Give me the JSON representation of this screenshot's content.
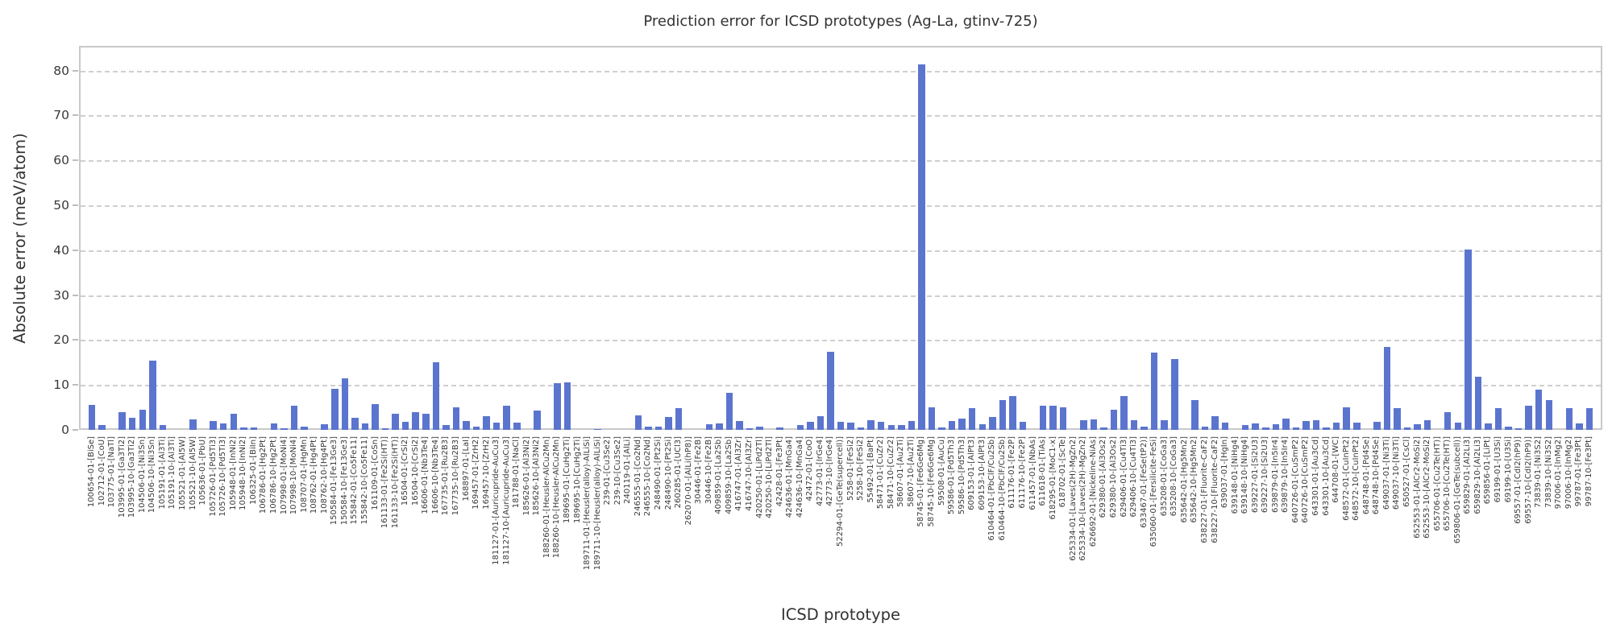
{
  "chart_data": {
    "type": "bar",
    "title": "Prediction error for ICSD prototypes (Ag-La, gtinv-725)",
    "xlabel": "ICSD prototype",
    "ylabel": "Absolute error (meV/atom)",
    "ylim": [
      0,
      85.5
    ],
    "yticks": [
      0,
      10,
      20,
      30,
      40,
      50,
      60,
      70,
      80
    ],
    "grid": "horizontal-dashed",
    "legend": "none",
    "bar_color": "#5b75ce",
    "grid_color": "#cfcfcf",
    "frame_color": "#c9c9c9",
    "text_color": "#3a3a3a",
    "xtick_rotation": 90,
    "categories": [
      "100654-01-[BiSe]",
      "102712-01-[CoU]",
      "103775-01-[NaTl]",
      "103995-01-[Ga3Ti2]",
      "103995-10-[Ga3Ti2]",
      "104506-01-[Ni3Sn]",
      "104506-10-[Ni3Sn]",
      "105191-01-[Al3Ti]",
      "105191-10-[Al3Ti]",
      "105521-01-[Al5W]",
      "105521-10-[Al5W]",
      "105636-01-[PbU]",
      "105726-01-[Pd5Ti3]",
      "105726-10-[Pd5Ti3]",
      "105948-01-[InNi2]",
      "105948-10-[InNi2]",
      "106325-01-[BiIn]",
      "106786-01-[Hg2Pt]",
      "106786-10-[Hg2Pt]",
      "107998-01-[MoNi4]",
      "107998-10-[MoNi4]",
      "108707-01-[HgMn]",
      "108762-01-[Hg4Pt]",
      "108762-10-[Hg4Pt]",
      "150584-01-[Fe13Ge3]",
      "150584-10-[Fe13Ge3]",
      "155842-01-[Co5Fe11]",
      "155842-10-[Co5Fe11]",
      "161109-01-[CoSn]",
      "161133-01-[Fe2Si(HT)]",
      "161133-10-[Fe2Si(HT)]",
      "16504-01-[CrSi2]",
      "16504-10-[CrSi2]",
      "16606-01-[Nb3Te4]",
      "16606-10-[Nb3Te4]",
      "167735-01-[Ru2B3]",
      "167735-10-[Ru2B3]",
      "168897-01-[LaI]",
      "169457-01-[ZrH2]",
      "169457-10-[ZrH2]",
      "181127-01-[Auricupride-AuCu3]",
      "181127-10-[Auricupride-AuCu3]",
      "181788-01-[NaCl]",
      "185626-01-[Al3Ni2]",
      "185626-10-[Al3Ni2]",
      "188260-01-[Heusler-AlCu2Mn]",
      "188260-10-[Heusler-AlCu2Mn]",
      "189695-01-[CuHg2Ti]",
      "189695-10-[CuHg2Ti]",
      "189711-01-[Heusler(alloy)-AlLiSi]",
      "189711-10-[Heusler(alloy)-AlLiSi]",
      "239-01-[Cu3Se2]",
      "239-10-[Cu3Se2]",
      "240119-01-[AlLi]",
      "246555-01-[Co2Nd]",
      "246555-10-[Co2Nd]",
      "248490-01-[Pt2Si]",
      "248490-10-[Pt2Si]",
      "260285-01-[UCl3]",
      "262070-01-[AlLi(hP8)]",
      "30446-01-[Fe2B]",
      "30446-10-[Fe2B]",
      "409859-01-[La2Sb]",
      "409859-10-[La2Sb]",
      "416747-01-[Al3Zr]",
      "416747-10-[Al3Zr]",
      "420250-01-[LiPd2Tl]",
      "420250-10-[LiPd2Tl]",
      "42428-01-[Fe3Pt]",
      "424636-01-[MnGa4]",
      "424636-10-[MnGa4]",
      "42472-01-[CoO]",
      "42773-01-[IrGe4]",
      "42773-10-[IrGe4]",
      "52294-01-[GeTe(supercell)]",
      "5258-01-[FeSi2]",
      "5258-10-[FeSi2]",
      "55492-01-[BaPt]",
      "58471-01-[CuZr2]",
      "58471-10-[CuZr2]",
      "58607-01-[Au2Ti]",
      "58607-10-[Au2Ti]",
      "58745-01-[Fe6Ge6Mg]",
      "58745-10-[Fe6Ge6Mg]",
      "59508-01-[AuCu]",
      "59586-01-[Pd5Th3]",
      "59586-10-[Pd5Th3]",
      "609153-01-[AlPt3]",
      "609153-10-[AlPt3]",
      "610464-01-[PbClF/Cu2Sb]",
      "610464-10-[PbClF/Cu2Sb]",
      "611176-01-[Fe2P]",
      "611176-10-[Fe2P]",
      "611457-01-[NbAs]",
      "611618-01-[TiAs]",
      "618295-01-[MoC1-x]",
      "618702-01-[ScTe]",
      "625334-01-[Laves(2H)-MgZn2]",
      "625334-10-[Laves(2H)-MgZn2]",
      "626692-01-[Nickeline-NiAs]",
      "629380-01-[Al3Os2]",
      "629380-10-[Al3Os2]",
      "629406-01-[Cu4Ti3]",
      "629406-10-[Cu4Ti3]",
      "633467-01-[FeSe(tP2)]",
      "635060-01-[Fersilicite-FeSi]",
      "635208-01-[CoGa3]",
      "635208-10-[CoGa3]",
      "635642-01-[Hg5Mn2]",
      "635642-10-[Hg5Mn2]",
      "638227-01-[Fluorite-CaF2]",
      "638227-10-[Fluorite-CaF2]",
      "639037-01-[HgIn]",
      "639148-01-[NiHg4]",
      "639148-10-[NiHg4]",
      "639227-01-[Si2U3]",
      "639227-10-[Si2U3]",
      "639879-01-[In5Ir4]",
      "639879-10-[In5Ir4]",
      "640726-01-[CuSmP2]",
      "640726-10-[CuSmP2]",
      "643301-01-[Au3Cd]",
      "643301-10-[Au3Cd]",
      "644708-01-[WC]",
      "648572-01-[CuInPt2]",
      "648572-10-[CuInPt2]",
      "648748-01-[Pd4Se]",
      "648748-10-[Pd4Se]",
      "649037-01-[Ni3Ti]",
      "649037-10-[Ni3Ti]",
      "650527-01-[CsCl]",
      "652553-01-[AlCr2-MoSi2]",
      "652553-10-[AlCr2-MoSi2]",
      "655706-01-[Cu2Te(HT)]",
      "655706-10-[Cu2Te(HT)]",
      "659806-01-[GeTe(subcell)]",
      "659829-01-[Al2Li3]",
      "659829-10-[Al2Li3]",
      "659856-01-[LiPt]",
      "69199-01-[U3Si]",
      "69199-10-[U3Si]",
      "69557-01-[CdI2(hP9)]",
      "69557-10-[CdI2(hP9)]",
      "73839-01-[Ni3S2]",
      "73839-10-[Ni3S2]",
      "97006-01-[InMg2]",
      "97006-10-[InMg2]",
      "99787-01-[Fe3Pt]",
      "99787-10-[Fe3Pt]"
    ],
    "values": [
      5.5,
      1.1,
      0,
      3.9,
      2.7,
      4.5,
      15.5,
      1.0,
      0,
      0,
      2.4,
      0,
      2.0,
      1.5,
      3.5,
      0.5,
      0.6,
      0,
      1.5,
      0.4,
      5.4,
      0.7,
      0,
      1.2,
      9.1,
      11.5,
      2.7,
      1.4,
      5.8,
      0.3,
      3.6,
      1.8,
      4.0,
      3.5,
      15.0,
      1.1,
      5.1,
      1.9,
      0.7,
      3.0,
      1.7,
      5.3,
      1.7,
      0,
      4.3,
      0,
      10.4,
      10.5,
      0,
      0,
      0.2,
      0,
      0,
      0,
      3.3,
      0.7,
      0.8,
      2.9,
      4.9,
      0,
      0,
      1.2,
      1.5,
      8.3,
      1.9,
      0.4,
      0.8,
      0,
      0.5,
      0,
      1.1,
      1.8,
      3.1,
      17.3,
      1.8,
      1.7,
      0.6,
      2.1,
      1.8,
      1.1,
      1.0,
      1.9,
      81.3,
      5.1,
      0.6,
      1.9,
      2.5,
      4.9,
      1.3,
      2.9,
      6.6,
      7.5,
      1.8,
      0,
      5.3,
      5.4,
      5.1,
      0,
      2.1,
      2.3,
      0.5,
      4.5,
      7.5,
      2.1,
      0.7,
      17.2,
      2.1,
      15.7,
      0,
      6.6,
      0.7,
      3.1,
      1.7,
      0,
      1.1,
      1.5,
      0.5,
      1.2,
      2.5,
      0.6,
      1.9,
      2.1,
      0.6,
      1.7,
      5.1,
      1.7,
      0,
      1.8,
      18.4,
      4.8,
      0.6,
      1.2,
      2.1,
      0,
      3.9,
      1.7,
      40.1,
      11.9,
      1.5,
      4.8,
      0.7,
      0.3,
      5.3,
      8.9,
      6.7,
      0,
      4.9,
      1.5,
      4.8
    ]
  }
}
